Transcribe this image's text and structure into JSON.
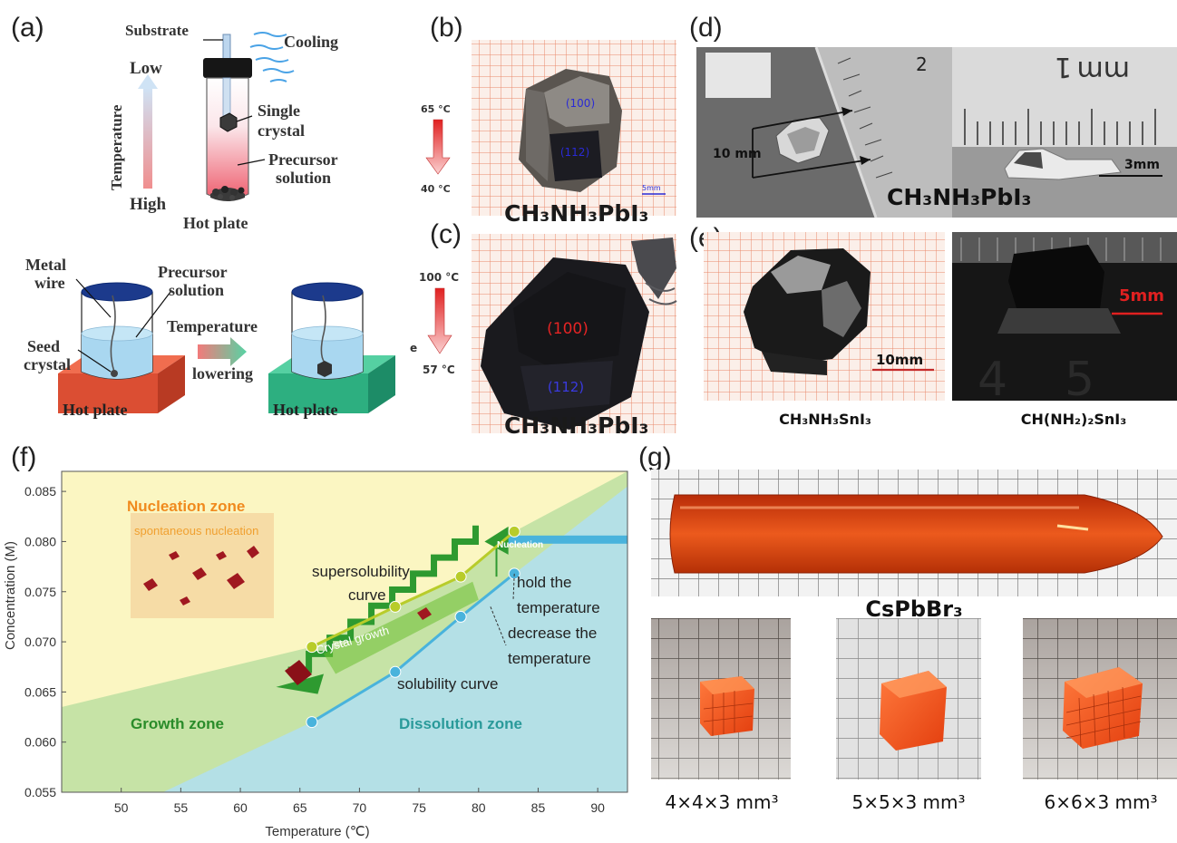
{
  "panels": {
    "a": {
      "letter": "(a)",
      "substrate": "Substrate",
      "cooling": "Cooling",
      "temp_low": "Low",
      "temp_high": "High",
      "temp_axis": "Temperature",
      "single_crystal_1": "Single",
      "single_crystal_2": "crystal",
      "precursor_1": "Precursor",
      "precursor_2": "solution",
      "hot_plate_top": "Hot plate",
      "metal_wire_1": "Metal",
      "metal_wire_2": "wire",
      "seed_1": "Seed",
      "seed_2": "crystal",
      "precursor_b1": "Precursor",
      "precursor_b2": "solution",
      "temperature_arrow": "Temperature",
      "lowering": "lowering",
      "hot_plate_red": "Hot plate",
      "hot_plate_green": "Hot plate"
    },
    "b": {
      "letter": "(b)",
      "t_high": "65 °C",
      "t_low": "40 °C",
      "facet_1": "(100)",
      "facet_2": "(112)",
      "formula": "CH₃NH₃PbI₃",
      "scale": "5mm"
    },
    "c": {
      "letter": "(c)",
      "t_high": "100 °C",
      "t_low": "57 °C",
      "facet_1": "(100)",
      "facet_2": "(112)",
      "formula": "CH₃NH₃PbI₃",
      "side_mark": "e"
    },
    "d": {
      "letter": "(d)",
      "dim": "10 mm",
      "scale": "3mm",
      "ruler_unit": "mm",
      "ruler_digit": "1",
      "ruler_digit_2": "2",
      "formula": "CH₃NH₃PbI₃"
    },
    "e": {
      "letter": "(e)",
      "scale_left": "10mm",
      "scale_right": "5mm",
      "caption_left": "CH₃NH₃SnI₃",
      "caption_right": "CH(NH₂)₂SnI₃",
      "ruler_4": "4",
      "ruler_5": "5"
    },
    "f": {
      "letter": "(f)",
      "nucleation_zone": "Nucleation zone",
      "spontaneous": "spontaneous nucleation",
      "nucleation_tag": "Nucleation",
      "supersolubility_1": "supersolubility",
      "supersolubility_2": "curve",
      "crystal_growth": "Crystal growth",
      "hold_1": "hold the",
      "hold_2": "temperature",
      "decrease_1": "decrease the",
      "decrease_2": "temperature",
      "solubility": "solubility curve",
      "growth_zone": "Growth zone",
      "dissolution_zone": "Dissolution zone"
    },
    "g": {
      "letter": "(g)",
      "formula": "CsPbBr₃",
      "cap_1": "4×4×3 mm³",
      "cap_2": "5×5×3 mm³",
      "cap_3": "6×6×3 mm³"
    }
  },
  "chart_data": {
    "type": "line",
    "xlabel": "Temperature (℃)",
    "ylabel": "Concentration (M)",
    "xlim": [
      45,
      92.5
    ],
    "ylim": [
      0.055,
      0.087
    ],
    "x_ticks": [
      50,
      55,
      60,
      65,
      70,
      75,
      80,
      85,
      90
    ],
    "y_ticks": [
      0.055,
      0.06,
      0.065,
      0.07,
      0.075,
      0.08,
      0.085
    ],
    "x_tick_labels": [
      "50",
      "55",
      "60",
      "65",
      "70",
      "75",
      "80",
      "85",
      "90"
    ],
    "y_tick_labels": [
      "0.055",
      "0.060",
      "0.065",
      "0.070",
      "0.075",
      "0.080",
      "0.085"
    ],
    "series": [
      {
        "name": "supersolubility curve",
        "color": "#b8cc2a",
        "x": [
          66,
          73,
          78.5,
          83
        ],
        "y": [
          0.0695,
          0.0735,
          0.0765,
          0.081
        ]
      },
      {
        "name": "solubility curve",
        "color": "#49b3dc",
        "x": [
          66,
          73,
          78.5,
          83
        ],
        "y": [
          0.062,
          0.067,
          0.0725,
          0.0768
        ]
      }
    ],
    "colors": {
      "nucleation": "#fbf6c2",
      "growth": "#c6e3a6",
      "dissolution": "#b4e0e6",
      "staircase": "#2e9a30"
    }
  }
}
